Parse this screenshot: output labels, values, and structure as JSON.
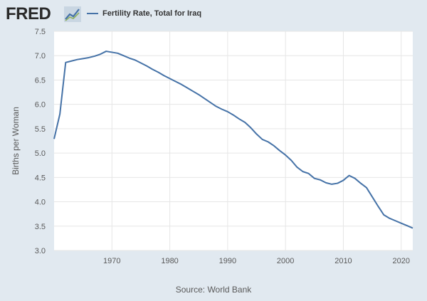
{
  "header": {
    "logo_text": "FRED",
    "logo_icon": "trend-line-icon"
  },
  "colors": {
    "background": "#e1e9f0",
    "plot_background": "#ffffff",
    "series": "#4572a7",
    "grid": "#e6e6e6"
  },
  "source_text": "Source: World Bank",
  "chart_data": {
    "type": "line",
    "title": "",
    "xlabel": "",
    "ylabel": "Births per Woman",
    "xlim": [
      1960,
      2022
    ],
    "ylim": [
      3.0,
      7.5
    ],
    "grid": true,
    "legend_position": "top-left",
    "x_ticks": [
      1970,
      1980,
      1990,
      2000,
      2010,
      2020
    ],
    "y_ticks": [
      "3.0",
      "3.5",
      "4.0",
      "4.5",
      "5.0",
      "5.5",
      "6.0",
      "6.5",
      "7.0",
      "7.5"
    ],
    "series": [
      {
        "name": "Fertility Rate, Total for Iraq",
        "x": [
          1960,
          1961,
          1962,
          1963,
          1964,
          1965,
          1966,
          1967,
          1968,
          1969,
          1970,
          1971,
          1972,
          1973,
          1974,
          1975,
          1976,
          1977,
          1978,
          1979,
          1980,
          1981,
          1982,
          1983,
          1984,
          1985,
          1986,
          1987,
          1988,
          1989,
          1990,
          1991,
          1992,
          1993,
          1994,
          1995,
          1996,
          1997,
          1998,
          1999,
          2000,
          2001,
          2002,
          2003,
          2004,
          2005,
          2006,
          2007,
          2008,
          2009,
          2010,
          2011,
          2012,
          2013,
          2014,
          2015,
          2016,
          2017,
          2018,
          2019,
          2020,
          2021,
          2022
        ],
        "values": [
          5.29,
          5.8,
          6.86,
          6.89,
          6.92,
          6.94,
          6.96,
          6.99,
          7.03,
          7.09,
          7.07,
          7.05,
          7.0,
          6.95,
          6.91,
          6.85,
          6.79,
          6.72,
          6.66,
          6.59,
          6.53,
          6.47,
          6.41,
          6.34,
          6.27,
          6.2,
          6.12,
          6.04,
          5.96,
          5.9,
          5.85,
          5.78,
          5.7,
          5.63,
          5.52,
          5.39,
          5.28,
          5.23,
          5.15,
          5.05,
          4.96,
          4.85,
          4.71,
          4.62,
          4.58,
          4.48,
          4.45,
          4.39,
          4.36,
          4.38,
          4.44,
          4.54,
          4.48,
          4.38,
          4.29,
          4.1,
          3.91,
          3.73,
          3.66,
          3.61,
          3.56,
          3.51,
          3.46
        ]
      }
    ]
  }
}
